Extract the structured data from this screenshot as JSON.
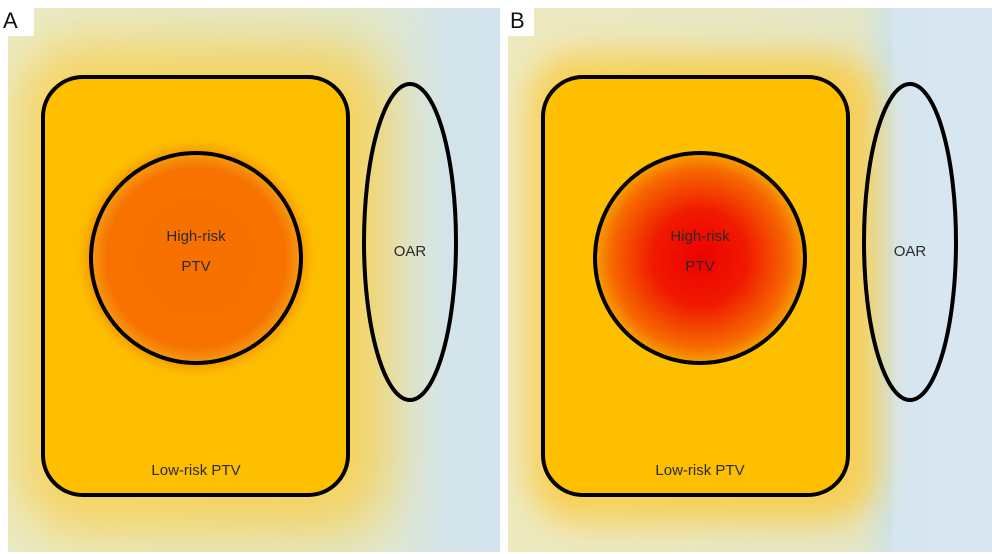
{
  "panels": [
    {
      "label": "A",
      "high_risk": [
        "High-risk",
        "PTV"
      ],
      "low_risk": "Low-risk PTV",
      "oar": "OAR"
    },
    {
      "label": "B",
      "high_risk": [
        "High-risk",
        "PTV"
      ],
      "low_risk": "Low-risk PTV",
      "oar": "OAR"
    }
  ]
}
